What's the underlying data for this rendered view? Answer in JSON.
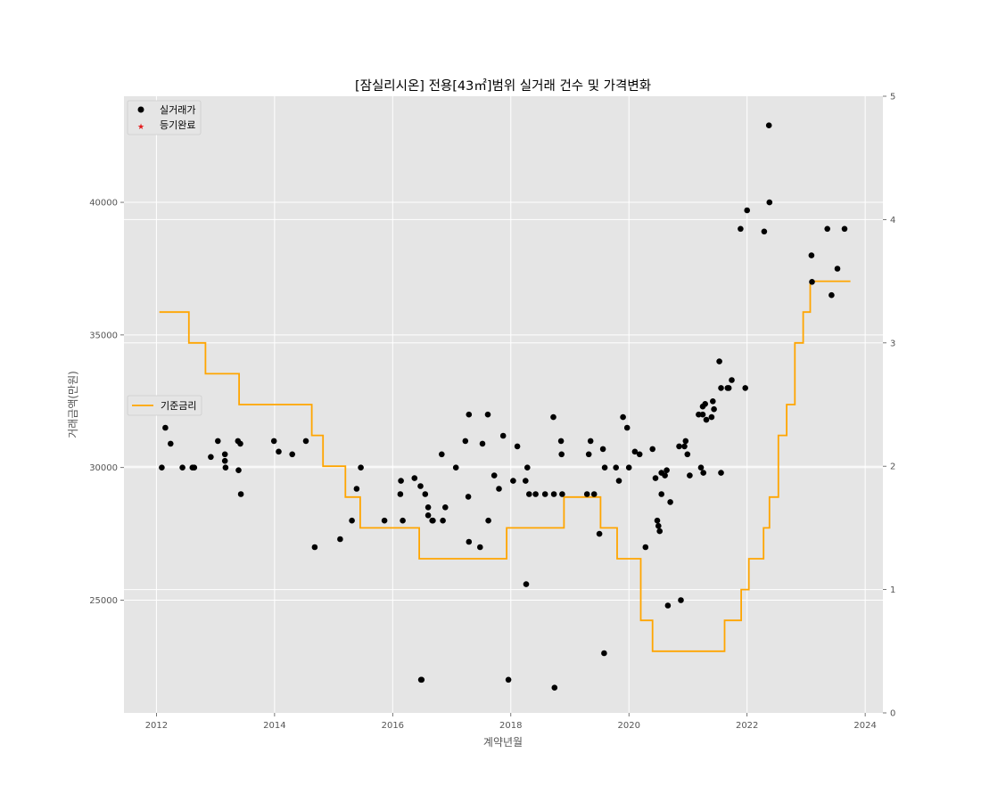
{
  "chart_data": {
    "type": "scatter",
    "title": "[잠실리시온] 전용[43㎡]범위 실거래 건수 및 가격변화",
    "xlabel": "계약년월",
    "ylabel": "거래금액(만원)",
    "xlim": [
      2011.45,
      2024.3
    ],
    "ylim": [
      20750,
      44000
    ],
    "y2lim": [
      0,
      5
    ],
    "x_ticks": [
      "2012",
      "2014",
      "2016",
      "2018",
      "2020",
      "2022",
      "2024"
    ],
    "y_ticks": [
      "25000",
      "30000",
      "35000",
      "40000"
    ],
    "y2_ticks": [
      "0",
      "1",
      "2",
      "3",
      "4",
      "5"
    ],
    "grid": true,
    "legend_top": {
      "placement": "top-left",
      "entries": [
        "실거래가",
        "등기완료"
      ]
    },
    "legend_mid": {
      "placement": "center-left",
      "entries": [
        "기준금리"
      ]
    },
    "colors": {
      "transactions": "#000000",
      "registered": "#e41a1c",
      "rate": "#ffa500",
      "panel": "#e5e5e5",
      "grid": "#ffffff"
    },
    "series": [
      {
        "name": "실거래가",
        "kind": "scatter",
        "axis": "left",
        "points": [
          [
            2012.09,
            30000
          ],
          [
            2012.15,
            31500
          ],
          [
            2012.24,
            30900
          ],
          [
            2012.44,
            30000
          ],
          [
            2012.61,
            30000
          ],
          [
            2012.64,
            30000
          ],
          [
            2012.92,
            30400
          ],
          [
            2013.04,
            31000
          ],
          [
            2013.16,
            30500
          ],
          [
            2013.16,
            30250
          ],
          [
            2013.17,
            30000
          ],
          [
            2013.38,
            31000
          ],
          [
            2013.39,
            29900
          ],
          [
            2013.42,
            30900
          ],
          [
            2013.43,
            29000
          ],
          [
            2013.99,
            31000
          ],
          [
            2014.07,
            30600
          ],
          [
            2014.3,
            30500
          ],
          [
            2014.53,
            31000
          ],
          [
            2014.68,
            27000
          ],
          [
            2015.11,
            27300
          ],
          [
            2015.31,
            28000
          ],
          [
            2015.39,
            29200
          ],
          [
            2015.46,
            30000
          ],
          [
            2015.86,
            28000
          ],
          [
            2016.13,
            29000
          ],
          [
            2016.14,
            29500
          ],
          [
            2016.17,
            28000
          ],
          [
            2016.37,
            29600
          ],
          [
            2016.47,
            29300
          ],
          [
            2016.48,
            22000
          ],
          [
            2016.49,
            22000
          ],
          [
            2016.55,
            29000
          ],
          [
            2016.6,
            28500
          ],
          [
            2016.6,
            28200
          ],
          [
            2016.67,
            28000
          ],
          [
            2016.68,
            28000
          ],
          [
            2016.83,
            30500
          ],
          [
            2016.85,
            28000
          ],
          [
            2016.89,
            28500
          ],
          [
            2017.07,
            30000
          ],
          [
            2017.23,
            31000
          ],
          [
            2017.28,
            28900
          ],
          [
            2017.29,
            32000
          ],
          [
            2017.29,
            27200
          ],
          [
            2017.48,
            27000
          ],
          [
            2017.52,
            30900
          ],
          [
            2017.61,
            32000
          ],
          [
            2017.62,
            28000
          ],
          [
            2017.72,
            29700
          ],
          [
            2017.8,
            29200
          ],
          [
            2017.87,
            31200
          ],
          [
            2017.96,
            22000
          ],
          [
            2018.04,
            29500
          ],
          [
            2018.11,
            30800
          ],
          [
            2018.25,
            29500
          ],
          [
            2018.26,
            25600
          ],
          [
            2018.28,
            30000
          ],
          [
            2018.31,
            29000
          ],
          [
            2018.42,
            29000
          ],
          [
            2018.58,
            29000
          ],
          [
            2018.72,
            31900
          ],
          [
            2018.73,
            29000
          ],
          [
            2018.74,
            21700
          ],
          [
            2018.85,
            31000
          ],
          [
            2018.86,
            30500
          ],
          [
            2018.87,
            29000
          ],
          [
            2019.29,
            29000
          ],
          [
            2019.32,
            30500
          ],
          [
            2019.35,
            31000
          ],
          [
            2019.41,
            29000
          ],
          [
            2019.5,
            27500
          ],
          [
            2019.56,
            30700
          ],
          [
            2019.58,
            23000
          ],
          [
            2019.59,
            30000
          ],
          [
            2019.78,
            30000
          ],
          [
            2019.83,
            29500
          ],
          [
            2019.9,
            31900
          ],
          [
            2019.97,
            31500
          ],
          [
            2020.0,
            30000
          ],
          [
            2020.1,
            30600
          ],
          [
            2020.18,
            30500
          ],
          [
            2020.28,
            27000
          ],
          [
            2020.4,
            30700
          ],
          [
            2020.45,
            29600
          ],
          [
            2020.48,
            28000
          ],
          [
            2020.5,
            27800
          ],
          [
            2020.52,
            27600
          ],
          [
            2020.55,
            29000
          ],
          [
            2020.55,
            29800
          ],
          [
            2020.61,
            29700
          ],
          [
            2020.64,
            29900
          ],
          [
            2020.66,
            24800
          ],
          [
            2020.7,
            28700
          ],
          [
            2020.85,
            30800
          ],
          [
            2020.88,
            25000
          ],
          [
            2020.94,
            30800
          ],
          [
            2020.96,
            31000
          ],
          [
            2020.99,
            30500
          ],
          [
            2021.03,
            29700
          ],
          [
            2021.18,
            32000
          ],
          [
            2021.22,
            30000
          ],
          [
            2021.25,
            32300
          ],
          [
            2021.25,
            32000
          ],
          [
            2021.26,
            29800
          ],
          [
            2021.29,
            32400
          ],
          [
            2021.31,
            31800
          ],
          [
            2021.4,
            31900
          ],
          [
            2021.42,
            32500
          ],
          [
            2021.44,
            32200
          ],
          [
            2021.53,
            34000
          ],
          [
            2021.56,
            29800
          ],
          [
            2021.56,
            33000
          ],
          [
            2021.67,
            33000
          ],
          [
            2021.69,
            33000
          ],
          [
            2021.74,
            33300
          ],
          [
            2021.89,
            39000
          ],
          [
            2021.97,
            33000
          ],
          [
            2022.0,
            39700
          ],
          [
            2022.29,
            38900
          ],
          [
            2022.37,
            42900
          ],
          [
            2022.38,
            40000
          ],
          [
            2023.09,
            38000
          ],
          [
            2023.1,
            37000
          ],
          [
            2023.36,
            39000
          ],
          [
            2023.43,
            36500
          ],
          [
            2023.53,
            37500
          ],
          [
            2023.65,
            39000
          ]
        ]
      },
      {
        "name": "등기완료",
        "kind": "scatter",
        "axis": "left",
        "points": []
      },
      {
        "name": "기준금리",
        "kind": "step",
        "axis": "right",
        "points": [
          [
            2012.05,
            3.25
          ],
          [
            2012.55,
            3.0
          ],
          [
            2012.83,
            2.75
          ],
          [
            2013.4,
            2.5
          ],
          [
            2014.63,
            2.25
          ],
          [
            2014.82,
            2.0
          ],
          [
            2015.2,
            1.75
          ],
          [
            2015.45,
            1.5
          ],
          [
            2016.45,
            1.25
          ],
          [
            2017.93,
            1.5
          ],
          [
            2018.9,
            1.75
          ],
          [
            2019.52,
            1.5
          ],
          [
            2019.8,
            1.25
          ],
          [
            2020.2,
            0.75
          ],
          [
            2020.4,
            0.5
          ],
          [
            2021.62,
            0.75
          ],
          [
            2021.9,
            1.0
          ],
          [
            2022.03,
            1.25
          ],
          [
            2022.28,
            1.5
          ],
          [
            2022.38,
            1.75
          ],
          [
            2022.53,
            2.25
          ],
          [
            2022.67,
            2.5
          ],
          [
            2022.81,
            3.0
          ],
          [
            2022.95,
            3.25
          ],
          [
            2023.07,
            3.5
          ],
          [
            2023.75,
            3.5
          ]
        ]
      }
    ]
  }
}
